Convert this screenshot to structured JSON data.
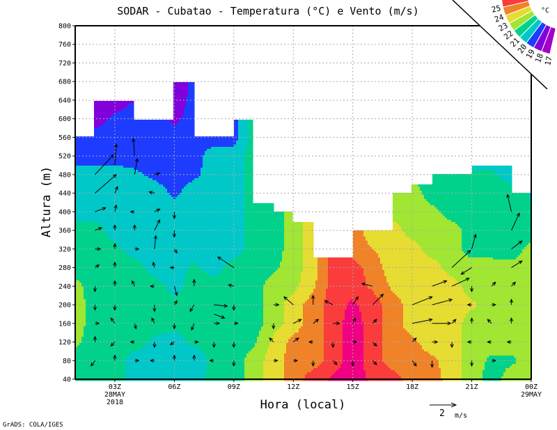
{
  "chart_data": {
    "type": "heatmap",
    "title": "SODAR - Cubatao - Temperatura (°C) e Vento (m/s)",
    "xlabel": "Hora (local)",
    "ylabel": "Altura (m)",
    "footer": "GrADS: COLA/IGES",
    "ylim": [
      40,
      800
    ],
    "yticks": [
      "40",
      "80",
      "120",
      "160",
      "200",
      "240",
      "280",
      "320",
      "360",
      "400",
      "440",
      "480",
      "520",
      "560",
      "600",
      "640",
      "680",
      "720",
      "760",
      "800"
    ],
    "xlim_hours": [
      1,
      24
    ],
    "xticks": [
      {
        "hour": 3,
        "label": "03Z",
        "sub1": "28MAY",
        "sub2": "2018"
      },
      {
        "hour": 6,
        "label": "06Z"
      },
      {
        "hour": 9,
        "label": "09Z"
      },
      {
        "hour": 12,
        "label": "12Z"
      },
      {
        "hour": 15,
        "label": "15Z"
      },
      {
        "hour": 18,
        "label": "18Z"
      },
      {
        "hour": 21,
        "label": "21Z"
      },
      {
        "hour": 24,
        "label": "00Z",
        "sub1": "29MAY"
      }
    ],
    "levels_m": [
      40,
      80,
      120,
      160,
      200,
      240,
      280,
      320,
      360,
      400,
      440,
      480,
      520,
      560,
      600,
      640,
      680
    ],
    "hours": [
      1,
      2,
      3,
      4,
      5,
      6,
      7,
      8,
      9,
      10,
      11,
      12,
      13,
      14,
      15,
      16,
      17,
      18,
      19,
      20,
      21,
      22,
      23,
      24
    ],
    "max_height_per_hour_interval": [
      560,
      640,
      640,
      600,
      600,
      680,
      560,
      560,
      600,
      420,
      400,
      380,
      300,
      300,
      360,
      360,
      440,
      460,
      480,
      480,
      500,
      500,
      440
    ],
    "temperature_c": [
      [
        20.5,
        20.5,
        21.2,
        21.5,
        21.5,
        21.3,
        20.5,
        20.5,
        20.5,
        19.5,
        19.5,
        19.5,
        18.5,
        18.5,
        18.5,
        17.5,
        17.5
      ],
      [
        20.5,
        20.5,
        20.5,
        20.5,
        20.5,
        20.5,
        20.5,
        20.5,
        20.5,
        19.5,
        19.5,
        19.5,
        18.5,
        18.5,
        17.5,
        17.5,
        17.5
      ],
      [
        20.5,
        20.5,
        20.5,
        20.5,
        20.5,
        20.5,
        20.5,
        20.3,
        19.5,
        19.5,
        19.5,
        19.5,
        18.5,
        18.5,
        18.2,
        17.5,
        17.5
      ],
      [
        19.5,
        19.5,
        20.5,
        20.5,
        20.5,
        20.5,
        20.5,
        19.5,
        19.5,
        19.5,
        19.5,
        19.2,
        18.5,
        18.5,
        18.5,
        18.0,
        18.0
      ],
      [
        19.5,
        19.5,
        19.8,
        20.5,
        20.5,
        20.5,
        19.5,
        19.5,
        19.5,
        19.5,
        19.5,
        18.8,
        18.5,
        18.5,
        18.5,
        18.0,
        17.5
      ],
      [
        19.5,
        19.5,
        19.5,
        20.3,
        20.3,
        19.6,
        19.5,
        19.5,
        19.5,
        19.5,
        18.8,
        18.5,
        18.5,
        18.5,
        17.7,
        17.5,
        17.5
      ],
      [
        19.5,
        19.0,
        20.3,
        20.5,
        20.5,
        20.5,
        20.2,
        19.5,
        19.5,
        19.5,
        19.5,
        18.8,
        18.5,
        18.5,
        18.5,
        18.3,
        18.2
      ],
      [
        20.5,
        20.5,
        20.5,
        20.5,
        20.5,
        20.5,
        19.5,
        19.5,
        19.5,
        19.5,
        19.5,
        19.5,
        19.6,
        18.5,
        18.5,
        18.5,
        18.5
      ],
      [
        20.5,
        20.5,
        20.5,
        20.5,
        20.5,
        20.5,
        20.5,
        19.5,
        19.5,
        19.5,
        19.5,
        19.5,
        19.5,
        18.5,
        18.5,
        18.5,
        18.5
      ],
      [
        21.5,
        21.5,
        20.8,
        20.5,
        20.5,
        20.5,
        20.5,
        20.5,
        20.5,
        20.5,
        20.5,
        20.5,
        20.5,
        20.5,
        20.5,
        20.5,
        20.5
      ],
      [
        22.5,
        22.5,
        22.3,
        21.5,
        21.5,
        21.5,
        20.8,
        20.5,
        20.5,
        20.5,
        20.5,
        20.5,
        20.5,
        20.5,
        20.5,
        20.5,
        20.5
      ],
      [
        23.5,
        23.5,
        23.3,
        22.5,
        22.5,
        21.7,
        21.5,
        21.5,
        21.5,
        21.5,
        21.5,
        21.5,
        21.5,
        21.5,
        21.5,
        21.5,
        21.5
      ],
      [
        24.5,
        23.5,
        23.5,
        23.5,
        23.5,
        22.8,
        22.5,
        22.5,
        22.5,
        22.5,
        22.5,
        22.5,
        22.5,
        22.5,
        22.5,
        22.5,
        22.5
      ],
      [
        25.2,
        24.5,
        24.5,
        24.5,
        24.5,
        24.5,
        24.5,
        24.5,
        24.5,
        24.5,
        24.5,
        24.5,
        24.5,
        24.5,
        24.5,
        24.5,
        24.5
      ],
      [
        25.5,
        25.5,
        25.5,
        25.5,
        25.2,
        24.5,
        24.5,
        23.5,
        23.5,
        23.0,
        23.0,
        23.0,
        23.0,
        23.0,
        23.0,
        23.0,
        23.0
      ],
      [
        24.8,
        24.5,
        24.5,
        24.5,
        24.5,
        23.8,
        23.5,
        23.0,
        22.5,
        22.5,
        22.5,
        22.5,
        22.5,
        22.5,
        22.5,
        22.5,
        22.5
      ],
      [
        24.5,
        23.5,
        23.5,
        23.5,
        23.5,
        22.8,
        22.5,
        22.5,
        22.5,
        21.5,
        21.5,
        21.0,
        21.0,
        21.0,
        21.0,
        21.0,
        21.0
      ],
      [
        23.5,
        23.5,
        23.2,
        22.5,
        22.5,
        22.5,
        22.5,
        22.5,
        21.5,
        21.5,
        21.5,
        20.8,
        20.8,
        20.8,
        20.8,
        20.8,
        20.8
      ],
      [
        23.5,
        23.2,
        22.5,
        22.5,
        22.5,
        22.5,
        22.5,
        21.5,
        21.5,
        21.3,
        20.5,
        20.5,
        20.5,
        20.5,
        20.5,
        20.5,
        20.5
      ],
      [
        22.5,
        22.5,
        22.5,
        22.5,
        22.5,
        22.5,
        21.5,
        21.5,
        21.5,
        20.5,
        20.5,
        20.5,
        20.5,
        20.5,
        20.5,
        20.5,
        20.5
      ],
      [
        21.5,
        21.5,
        21.5,
        21.5,
        22.2,
        21.5,
        21.5,
        20.5,
        20.5,
        20.5,
        20.5,
        20.2,
        19.5,
        19.5,
        19.5,
        19.5,
        19.5
      ],
      [
        20.5,
        20.8,
        21.5,
        21.5,
        21.5,
        21.5,
        21.5,
        20.5,
        20.5,
        20.5,
        20.5,
        20.2,
        19.5,
        19.5,
        19.5,
        19.5,
        19.5
      ],
      [
        21.5,
        20.8,
        21.5,
        21.5,
        21.5,
        21.5,
        21.3,
        20.5,
        20.5,
        20.5,
        20.5,
        19.5,
        19.5,
        19.5,
        19.5,
        19.5,
        19.5
      ],
      [
        21.5,
        21.5,
        21.5,
        21.5,
        21.5,
        21.5,
        21.5,
        21.3,
        20.5,
        20.5,
        19.8,
        19.5,
        19.5,
        19.5,
        19.5,
        19.5,
        19.5
      ]
    ],
    "wind_vectors_hour_height_u_v": [
      [
        2,
        480,
        1.4,
        1.5
      ],
      [
        2,
        440,
        1.6,
        1.4
      ],
      [
        2,
        400,
        0.8,
        0.3
      ],
      [
        2,
        360,
        0.5,
        0.2
      ],
      [
        2,
        320,
        0.4,
        0
      ],
      [
        2,
        280,
        0.3,
        0.2
      ],
      [
        2,
        240,
        0,
        -0.4
      ],
      [
        2,
        200,
        0,
        -0.4
      ],
      [
        2,
        160,
        0.3,
        0
      ],
      [
        2,
        120,
        0,
        0.4
      ],
      [
        2,
        80,
        -0.3,
        -0.4
      ],
      [
        3,
        500,
        0.1,
        1.6
      ],
      [
        3,
        440,
        0.2,
        0.5
      ],
      [
        3,
        400,
        0.1,
        0.5
      ],
      [
        3,
        360,
        0,
        0.4
      ],
      [
        3,
        320,
        0,
        0.4
      ],
      [
        3,
        280,
        0,
        0.4
      ],
      [
        3,
        240,
        0,
        0.4
      ],
      [
        3,
        200,
        0,
        -0.4
      ],
      [
        3,
        160,
        -0.3,
        0.4
      ],
      [
        3,
        120,
        -0.3,
        -0.3
      ],
      [
        3,
        80,
        0,
        0.4
      ],
      [
        4,
        520,
        -0.1,
        1.3
      ],
      [
        4,
        480,
        0.2,
        1.2
      ],
      [
        4,
        400,
        -0.3,
        0
      ],
      [
        4,
        360,
        0,
        0.4
      ],
      [
        4,
        320,
        0.3,
        0
      ],
      [
        4,
        240,
        -0.2,
        0.4
      ],
      [
        4,
        160,
        0.1,
        -0.4
      ],
      [
        4,
        120,
        -0.3,
        0
      ],
      [
        4,
        80,
        0.3,
        0
      ],
      [
        5,
        480,
        0.4,
        0.1
      ],
      [
        5,
        440,
        -0.4,
        0.1
      ],
      [
        5,
        400,
        0.4,
        0.2
      ],
      [
        5,
        360,
        0.4,
        0.8
      ],
      [
        5,
        320,
        0.1,
        1
      ],
      [
        5,
        280,
        -0.1,
        0.4
      ],
      [
        5,
        240,
        -0.3,
        0
      ],
      [
        5,
        200,
        0,
        -0.5
      ],
      [
        5,
        160,
        -0.2,
        0.4
      ],
      [
        5,
        120,
        0,
        -0.4
      ],
      [
        5,
        80,
        -0.3,
        0
      ],
      [
        6,
        400,
        0,
        -0.5
      ],
      [
        6,
        360,
        0,
        -0.5
      ],
      [
        6,
        320,
        0.2,
        -0.3
      ],
      [
        6,
        280,
        -0.3,
        0
      ],
      [
        6,
        240,
        0.2,
        -0.7
      ],
      [
        6,
        200,
        0.2,
        0.3
      ],
      [
        6,
        160,
        0,
        -0.4
      ],
      [
        6,
        120,
        -0.3,
        -0.2
      ],
      [
        6,
        80,
        0,
        0.4
      ],
      [
        7,
        240,
        0,
        0.5
      ],
      [
        7,
        200,
        -0.3,
        -0.5
      ],
      [
        7,
        160,
        -0.2,
        -0.5
      ],
      [
        7,
        120,
        0.3,
        0
      ],
      [
        7,
        80,
        0,
        0.4
      ],
      [
        8,
        200,
        1,
        -0.1
      ],
      [
        8,
        180,
        0.8,
        -0.3
      ],
      [
        8,
        160,
        0.4,
        0
      ],
      [
        8,
        120,
        0,
        -0.4
      ],
      [
        8,
        80,
        -0.3,
        0
      ],
      [
        9,
        280,
        -1.2,
        0.8
      ],
      [
        9,
        240,
        -0.4,
        0.1
      ],
      [
        9,
        200,
        0,
        -0.4
      ],
      [
        9,
        160,
        0.3,
        0
      ],
      [
        9,
        120,
        0,
        -0.4
      ],
      [
        9,
        80,
        0,
        -0.4
      ],
      [
        11,
        200,
        0.4,
        0
      ],
      [
        11,
        160,
        0,
        -0.4
      ],
      [
        11,
        120,
        -0.3,
        0.3
      ],
      [
        11,
        80,
        0.3,
        0
      ],
      [
        12,
        200,
        -0.7,
        0.6
      ],
      [
        12,
        160,
        0.6,
        0.3
      ],
      [
        12,
        120,
        0.4,
        0.3
      ],
      [
        12,
        80,
        0.3,
        0
      ],
      [
        13,
        200,
        0,
        0.7
      ],
      [
        13,
        160,
        0.4,
        0.3
      ],
      [
        13,
        120,
        -0.3,
        0
      ],
      [
        13,
        80,
        0,
        -0.4
      ],
      [
        14,
        200,
        -0.6,
        0.3
      ],
      [
        14,
        160,
        0.5,
        0
      ],
      [
        14,
        120,
        0,
        -0.4
      ],
      [
        14,
        80,
        0.3,
        -0.3
      ],
      [
        15,
        200,
        0.4,
        0.6
      ],
      [
        15,
        160,
        0.2,
        0.4
      ],
      [
        15,
        120,
        0.3,
        0
      ],
      [
        15,
        80,
        0,
        -0.4
      ],
      [
        16,
        240,
        -0.8,
        0.2
      ],
      [
        16,
        200,
        0.8,
        0.8
      ],
      [
        16,
        160,
        0.3,
        0.3
      ],
      [
        16,
        120,
        0.3,
        -0.3
      ],
      [
        16,
        80,
        0.3,
        -0.3
      ],
      [
        18,
        200,
        1.5,
        0.6
      ],
      [
        18,
        160,
        1.5,
        0.3
      ],
      [
        18,
        120,
        0.3,
        0.3
      ],
      [
        18,
        80,
        0.3,
        -0.4
      ],
      [
        19,
        240,
        1.1,
        0.4
      ],
      [
        19,
        200,
        1.5,
        0.4
      ],
      [
        19,
        160,
        1.4,
        0
      ],
      [
        19,
        120,
        0.4,
        0
      ],
      [
        19,
        80,
        0,
        -0.5
      ],
      [
        20,
        280,
        1.4,
        1.3
      ],
      [
        20,
        240,
        1.3,
        0.6
      ],
      [
        20,
        160,
        0.3,
        0.3
      ],
      [
        20,
        120,
        0,
        -0.4
      ],
      [
        21,
        320,
        0.3,
        1.1
      ],
      [
        21,
        280,
        -0.8,
        -0.5
      ],
      [
        21,
        240,
        0,
        -0.4
      ],
      [
        21,
        200,
        -0.3,
        0
      ],
      [
        21,
        160,
        0,
        0.4
      ],
      [
        21,
        120,
        -0.3,
        0
      ],
      [
        21,
        80,
        0,
        -0.4
      ],
      [
        22,
        240,
        0.3,
        0.3
      ],
      [
        22,
        200,
        0.3,
        0
      ],
      [
        22,
        160,
        -0.3,
        0.3
      ],
      [
        22,
        120,
        -0.3,
        0
      ],
      [
        22,
        80,
        0.3,
        0
      ],
      [
        23,
        400,
        -0.3,
        1.3
      ],
      [
        23,
        360,
        0.6,
        1.3
      ],
      [
        23,
        320,
        0.8,
        0.6
      ],
      [
        23,
        280,
        0.8,
        0.5
      ],
      [
        23,
        240,
        0.3,
        0.3
      ],
      [
        23,
        200,
        0,
        0.4
      ],
      [
        23,
        160,
        0,
        0.4
      ],
      [
        23,
        120,
        -0.3,
        0
      ]
    ],
    "wind_reference": {
      "value_m_s": 2,
      "label": "2",
      "unit": "m/s"
    },
    "legend": {
      "unit": "°C",
      "labels": [
        "25",
        "24",
        "23",
        "22",
        "21",
        "20",
        "19",
        "18",
        "17"
      ],
      "colors": [
        "#f00082",
        "#fa3c3c",
        "#f08228",
        "#e6dc32",
        "#a0e632",
        "#00d28c",
        "#00c8c8",
        "#1e3cff",
        "#8200dc",
        "#a000c8"
      ],
      "thresholds": [
        17,
        18,
        19,
        20,
        21,
        22,
        23,
        24,
        25
      ],
      "placement": "top-right"
    }
  }
}
